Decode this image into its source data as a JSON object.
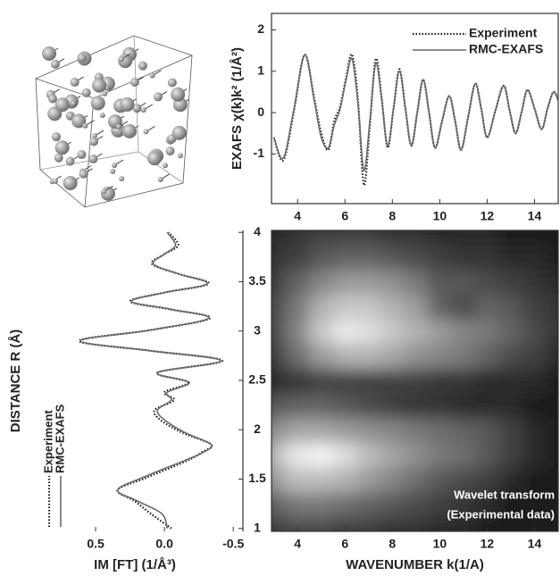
{
  "chart_data": [
    {
      "type": "line",
      "ylabel": "EXAFS χ(k)k² (1/Å²)",
      "legend": "upper right",
      "xlim": [
        2.9,
        15
      ],
      "xticks": [
        4,
        6,
        8,
        10,
        12,
        14
      ],
      "ylim": [
        -2.2,
        2.4
      ],
      "yticks": [
        -1,
        0,
        1,
        2
      ],
      "x": [
        3,
        3.4,
        3.85,
        4.3,
        4.7,
        5.0,
        5.3,
        5.55,
        5.8,
        6.05,
        6.3,
        6.55,
        6.8,
        7.05,
        7.3,
        7.55,
        7.8,
        8.05,
        8.3,
        8.55,
        8.8,
        9.05,
        9.3,
        9.55,
        9.8,
        10.1,
        10.4,
        10.65,
        10.9,
        11.2,
        11.5,
        11.75,
        12.0,
        12.35,
        12.7,
        12.95,
        13.2,
        13.45,
        13.7,
        14.0,
        14.3,
        14.55,
        14.8,
        15
      ],
      "series": [
        {
          "name": "Experiment",
          "color": "#1a1a1a",
          "style": "dotted",
          "values": [
            -0.6,
            -1.15,
            0.05,
            1.4,
            0.35,
            -0.5,
            -0.9,
            -0.2,
            0.15,
            0.85,
            1.4,
            0.3,
            -1.75,
            -0.3,
            1.3,
            0.35,
            -0.85,
            0.1,
            1.05,
            0.1,
            -0.8,
            0,
            0.8,
            0,
            -0.85,
            -0.2,
            0.4,
            -0.2,
            -0.9,
            -0.1,
            0.7,
            0.1,
            -0.6,
            0.05,
            0.65,
            0.05,
            -0.5,
            0,
            0.55,
            0.1,
            -0.4,
            0.1,
            0.5,
            0.3
          ]
        },
        {
          "name": "RMC-EXAFS",
          "color": "#6a6a6a",
          "style": "solid",
          "values": [
            -0.6,
            -1.1,
            0.1,
            1.4,
            0.3,
            -0.6,
            -0.85,
            -0.3,
            0.1,
            0.8,
            1.3,
            0.2,
            -1.4,
            -0.2,
            1.2,
            0.3,
            -0.8,
            0.1,
            1.0,
            0.1,
            -0.8,
            0,
            0.8,
            0,
            -0.85,
            -0.2,
            0.4,
            -0.2,
            -0.9,
            -0.1,
            0.7,
            0.1,
            -0.6,
            0.05,
            0.65,
            0.05,
            -0.5,
            0,
            0.55,
            0.1,
            -0.4,
            0.1,
            0.5,
            0.3
          ]
        }
      ]
    },
    {
      "type": "line",
      "xlabel": "IM [FT] (1/Å³)",
      "ylabel": "DISTANCE R (Å)",
      "legend": "lower left",
      "xlim": [
        1.0,
        -0.57
      ],
      "xticks": [
        0.5,
        {
          "value": 0,
          "label": "0.0"
        },
        -0.5
      ],
      "ylim": [
        0.97,
        4.02
      ],
      "yticks": [
        1,
        1.5,
        2,
        2.5,
        3,
        3.5,
        4
      ],
      "y": [
        1.0,
        1.15,
        1.28,
        1.39,
        1.52,
        1.69,
        1.77,
        1.85,
        1.97,
        2.1,
        2.2,
        2.3,
        2.38,
        2.48,
        2.58,
        2.7,
        2.8,
        2.9,
        3.01,
        3.13,
        3.22,
        3.3,
        3.39,
        3.48,
        3.58,
        3.68,
        3.78,
        3.87,
        4.0
      ],
      "series": [
        {
          "name": "Experiment",
          "color": "#1a1a1a",
          "style": "dotted",
          "values": [
            -0.05,
            0.1,
            0.22,
            0.34,
            0.12,
            -0.17,
            -0.27,
            -0.34,
            -0.13,
            0.03,
            0.07,
            -0.07,
            0.0,
            -0.17,
            0.05,
            -0.42,
            0.1,
            0.62,
            0.1,
            -0.33,
            -0.04,
            0.25,
            0.0,
            -0.32,
            -0.1,
            0.09,
            0.0,
            -0.1,
            -0.03
          ]
        },
        {
          "name": "RMC-EXAFS",
          "color": "#6a6a6a",
          "style": "solid",
          "values": [
            -0.02,
            0.02,
            0.2,
            0.34,
            0.15,
            -0.15,
            -0.28,
            -0.34,
            -0.15,
            0.0,
            0.05,
            -0.05,
            -0.02,
            -0.18,
            0.05,
            -0.41,
            0.1,
            0.61,
            0.1,
            -0.32,
            -0.05,
            0.24,
            0.0,
            -0.31,
            -0.1,
            0.08,
            0.0,
            -0.08,
            -0.02
          ]
        }
      ]
    },
    {
      "type": "contour",
      "xlabel": "WAVENUMBER k(1/A)",
      "annotations": [
        "Wavelet transform",
        "(Experimental data)"
      ],
      "xlim": [
        2.9,
        15
      ],
      "xticks": [
        4,
        6,
        8,
        10,
        12,
        14
      ],
      "ylim": [
        0.97,
        4.02
      ],
      "x": [
        3,
        4,
        5,
        6,
        7,
        8,
        9,
        10,
        11,
        12,
        13,
        14,
        15
      ],
      "y": [
        1.0,
        1.25,
        1.5,
        1.75,
        2.0,
        2.25,
        2.5,
        2.75,
        3.0,
        3.25,
        3.5,
        3.75,
        4.0
      ],
      "z": [
        [
          0.2,
          0.25,
          0.25,
          0.2,
          0.2,
          0.15,
          0.15,
          0.1,
          0.1,
          0.05,
          0.05,
          0.05,
          0.05
        ],
        [
          0.35,
          0.45,
          0.45,
          0.4,
          0.35,
          0.3,
          0.25,
          0.2,
          0.15,
          0.1,
          0.05,
          0.05,
          0.05
        ],
        [
          0.6,
          0.75,
          0.75,
          0.7,
          0.6,
          0.5,
          0.4,
          0.3,
          0.25,
          0.2,
          0.1,
          0.05,
          0.05
        ],
        [
          0.75,
          0.95,
          1.0,
          0.9,
          0.75,
          0.65,
          0.55,
          0.45,
          0.4,
          0.3,
          0.2,
          0.1,
          0.05
        ],
        [
          0.55,
          0.65,
          0.65,
          0.6,
          0.55,
          0.5,
          0.45,
          0.4,
          0.35,
          0.3,
          0.2,
          0.1,
          0.05
        ],
        [
          0.3,
          0.35,
          0.35,
          0.3,
          0.25,
          0.2,
          0.15,
          0.15,
          0.1,
          0.1,
          0.1,
          0.05,
          0.05
        ],
        [
          0.1,
          0.15,
          0.2,
          0.2,
          0.2,
          0.2,
          0.2,
          0.15,
          0.15,
          0.1,
          0.1,
          0.1,
          0.05
        ],
        [
          0.2,
          0.4,
          0.6,
          0.7,
          0.7,
          0.65,
          0.55,
          0.5,
          0.45,
          0.35,
          0.25,
          0.2,
          0.1
        ],
        [
          0.25,
          0.5,
          0.8,
          0.95,
          0.9,
          0.8,
          0.7,
          0.6,
          0.5,
          0.45,
          0.35,
          0.25,
          0.15
        ],
        [
          0.25,
          0.45,
          0.7,
          0.8,
          0.8,
          0.7,
          0.6,
          0.35,
          0.25,
          0.35,
          0.3,
          0.2,
          0.15
        ],
        [
          0.2,
          0.35,
          0.5,
          0.6,
          0.6,
          0.55,
          0.45,
          0.3,
          0.3,
          0.25,
          0.2,
          0.15,
          0.1
        ],
        [
          0.15,
          0.2,
          0.3,
          0.35,
          0.35,
          0.3,
          0.25,
          0.2,
          0.15,
          0.15,
          0.1,
          0.1,
          0.05
        ],
        [
          0.1,
          0.15,
          0.2,
          0.2,
          0.2,
          0.15,
          0.15,
          0.1,
          0.1,
          0.1,
          0.05,
          0.05,
          0.05
        ]
      ]
    }
  ]
}
